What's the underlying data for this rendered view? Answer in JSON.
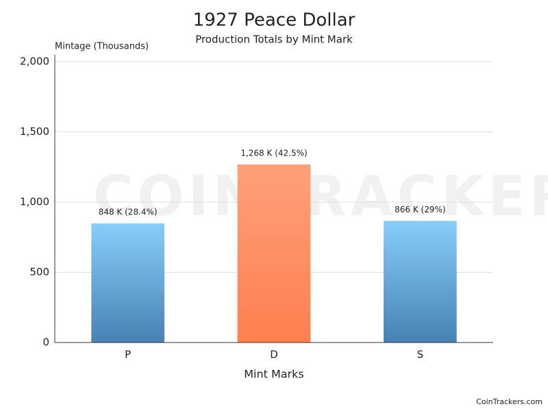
{
  "chart_data": {
    "type": "bar",
    "title": "1927 Peace Dollar",
    "subtitle": "Production Totals by Mint Mark",
    "y_label": "Mintage (Thousands)",
    "x_label": "Mint Marks",
    "watermark": "COINTRACKERS",
    "credit": "CoinTrackers.com",
    "categories": [
      "P",
      "D",
      "S"
    ],
    "values": [
      848,
      1268,
      866
    ],
    "value_labels": [
      "848 K (28.4%)",
      "1,268 K (42.5%)",
      "866 K (29%)"
    ],
    "bar_colors": [
      {
        "top": "#87cefa",
        "bottom": "#4682b4"
      },
      {
        "top": "#ffa07a",
        "bottom": "#ff7f50"
      },
      {
        "top": "#87cefa",
        "bottom": "#4682b4"
      }
    ],
    "ylim": [
      0,
      2000
    ],
    "yticks": [
      0,
      500,
      {
        "value": 1000,
        "label": "1,000"
      },
      {
        "value": 1500,
        "label": "1,500"
      },
      {
        "value": 2000,
        "label": "2,000"
      }
    ],
    "grid": true
  }
}
